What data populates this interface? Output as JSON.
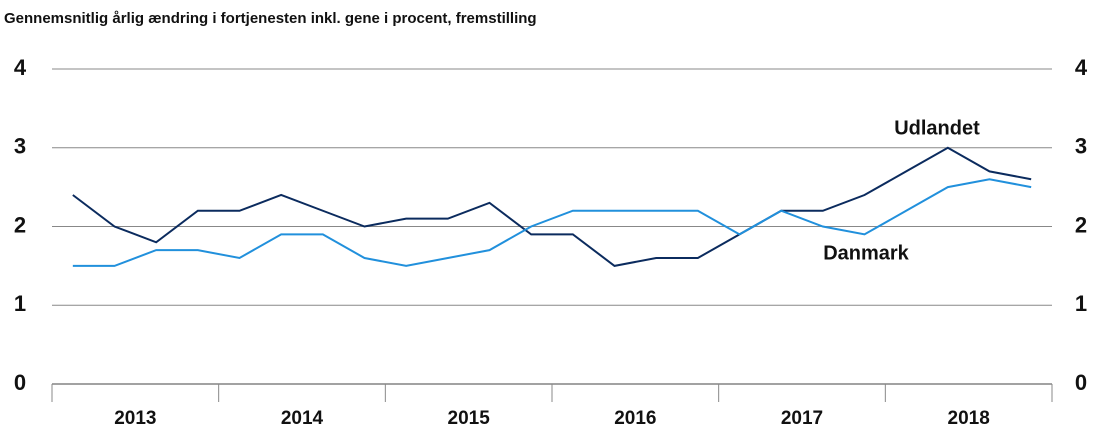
{
  "chart_data": {
    "type": "line",
    "title": "Gennemsnitlig årlig ændring i fortjenesten inkl. gene i procent, fremstilling",
    "categories": [
      "2013",
      null,
      null,
      null,
      "2014",
      null,
      null,
      null,
      "2015",
      null,
      null,
      null,
      "2016",
      null,
      null,
      null,
      "2017",
      null,
      null,
      null,
      "2018",
      null,
      null,
      null
    ],
    "series": [
      {
        "name": "Udlandet",
        "color": "#0b2b5e",
        "values": [
          2.4,
          2.0,
          1.8,
          2.2,
          2.2,
          2.4,
          2.2,
          2.0,
          2.1,
          2.1,
          2.3,
          1.9,
          1.9,
          1.5,
          1.6,
          1.6,
          1.9,
          2.2,
          2.2,
          2.4,
          2.7,
          3.0,
          2.7,
          2.6
        ]
      },
      {
        "name": "Danmark",
        "color": "#2190dc",
        "values": [
          1.5,
          1.5,
          1.7,
          1.7,
          1.6,
          1.9,
          1.9,
          1.6,
          1.5,
          1.6,
          1.7,
          2.0,
          2.2,
          2.2,
          2.2,
          2.2,
          1.9,
          2.2,
          2.0,
          1.9,
          2.2,
          2.5,
          2.6,
          2.5
        ]
      }
    ],
    "ylim": [
      0,
      4
    ],
    "yticks": [
      0,
      1,
      2,
      3,
      4
    ],
    "y2lim": [
      0,
      4
    ],
    "y2ticks": [
      0,
      1,
      2,
      3,
      4
    ],
    "grid": true
  }
}
